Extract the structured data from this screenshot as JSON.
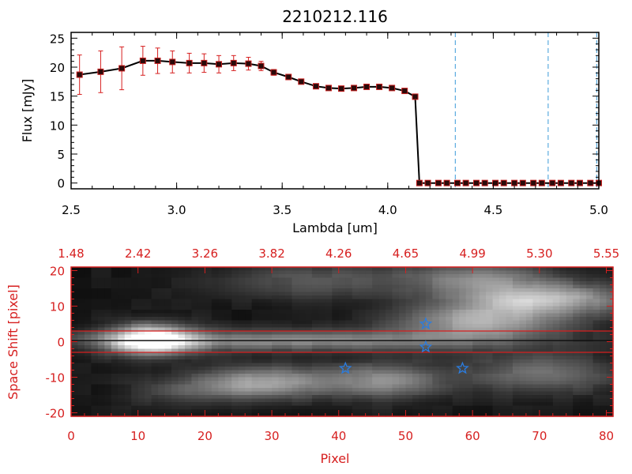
{
  "chart_data": [
    {
      "type": "line",
      "title": "2210212.116",
      "xlabel": "Lambda [um]",
      "ylabel": "Flux [mJy]",
      "xlim": [
        2.5,
        5.0
      ],
      "ylim": [
        -1,
        26
      ],
      "xticks": [
        "2.5",
        "3.0",
        "3.5",
        "4.0",
        "4.5",
        "5.0"
      ],
      "yticks": [
        "0",
        "5",
        "10",
        "15",
        "20",
        "25"
      ],
      "colors": {
        "line": "#000000",
        "marker": "#c8201f",
        "errorbar": "#d61f1f",
        "vline": "#3a9ad9",
        "zero_line": "#d61f1f"
      },
      "vlines": [
        4.32,
        4.76,
        4.99
      ],
      "series": [
        {
          "x": [
            2.54,
            2.64,
            2.74,
            2.84,
            2.91,
            2.98,
            3.06,
            3.13,
            3.2,
            3.27,
            3.34,
            3.4,
            3.46,
            3.53,
            3.59,
            3.66,
            3.72,
            3.78,
            3.84,
            3.9,
            3.96,
            4.02,
            4.08,
            4.13
          ],
          "y": [
            18.7,
            19.2,
            19.8,
            21.1,
            21.1,
            20.9,
            20.7,
            20.7,
            20.5,
            20.7,
            20.6,
            20.2,
            19.1,
            18.3,
            17.5,
            16.7,
            16.4,
            16.3,
            16.4,
            16.6,
            16.6,
            16.4,
            15.9,
            14.9
          ],
          "err": [
            3.4,
            3.6,
            3.7,
            2.5,
            2.2,
            1.9,
            1.7,
            1.6,
            1.5,
            1.3,
            1.1,
            0.8,
            0.5,
            0.4,
            0.3,
            0.3,
            0.3,
            0.3,
            0.3,
            0.3,
            0.3,
            0.3,
            0.3,
            0.3
          ]
        },
        {
          "x": [
            4.15,
            4.19,
            4.24,
            4.28,
            4.33,
            4.37,
            4.42,
            4.46,
            4.51,
            4.55,
            4.6,
            4.64,
            4.69,
            4.73,
            4.78,
            4.82,
            4.87,
            4.91,
            4.96,
            5.0
          ],
          "y": [
            0,
            0,
            0,
            0,
            0,
            0,
            0,
            0,
            0,
            0,
            0,
            0,
            0,
            0,
            0,
            0,
            0,
            0,
            0,
            0
          ]
        }
      ]
    },
    {
      "type": "heatmap",
      "xlabel": "Pixel",
      "ylabel": "Space Shift [pixel]",
      "xlim": [
        0,
        81
      ],
      "ylim": [
        -21,
        21
      ],
      "xticks": [
        "0",
        "10",
        "20",
        "30",
        "40",
        "50",
        "60",
        "70",
        "80"
      ],
      "yticks": [
        "-20",
        "-10",
        "0",
        "10",
        "20"
      ],
      "top_ticks": [
        "1.48",
        "2.42",
        "3.26",
        "3.82",
        "4.26",
        "4.65",
        "4.99",
        "5.30",
        "5.55"
      ],
      "colors": {
        "axes": "#d61f1f",
        "star": "#2a7de1",
        "trace": "#111111"
      },
      "aperture_lines": [
        3.0,
        -3.0
      ],
      "stars": [
        {
          "x": 53.0,
          "y": 5.0
        },
        {
          "x": 53.0,
          "y": -1.5
        },
        {
          "x": 41.0,
          "y": -7.5
        },
        {
          "x": 58.5,
          "y": -7.5
        }
      ],
      "blobs": [
        {
          "x": 12,
          "y": 0.5,
          "sx": 4.5,
          "sy": 3.0,
          "amp": 0.95
        },
        {
          "x": 32,
          "y": 0.3,
          "sx": 22,
          "sy": 2.0,
          "amp": 0.45
        },
        {
          "x": 29,
          "y": -11.5,
          "sx": 7,
          "sy": 3.2,
          "amp": 0.55
        },
        {
          "x": 47,
          "y": -11,
          "sx": 6,
          "sy": 3.5,
          "amp": 0.45
        },
        {
          "x": 61,
          "y": 5.5,
          "sx": 9,
          "sy": 3.5,
          "amp": 0.55
        },
        {
          "x": 70,
          "y": 12,
          "sx": 9,
          "sy": 3.0,
          "amp": 0.65
        },
        {
          "x": 61,
          "y": 18,
          "sx": 8,
          "sy": 3.0,
          "amp": 0.4
        },
        {
          "x": 36,
          "y": 17,
          "sx": 10,
          "sy": 3.5,
          "amp": 0.25
        },
        {
          "x": 70,
          "y": -9,
          "sx": 8,
          "sy": 4.0,
          "amp": 0.35
        },
        {
          "x": 17,
          "y": -14,
          "sx": 6,
          "sy": 3.0,
          "amp": 0.18
        }
      ]
    }
  ]
}
